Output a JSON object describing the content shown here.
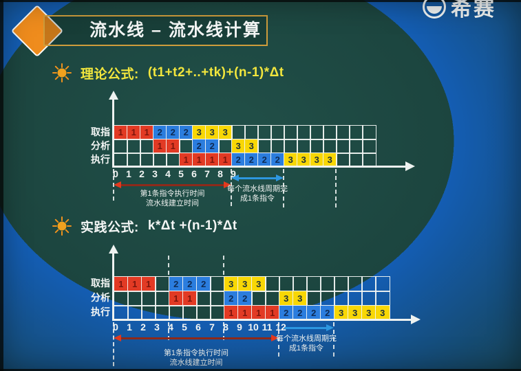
{
  "header": {
    "title": "流水线 – 流水线计算"
  },
  "logo": {
    "text": "希赛"
  },
  "palette": {
    "background": "#1c443e",
    "title_border": "#cf9d3c",
    "diamond": "#ef8c1d",
    "grid_line": "#edf1ef",
    "cell": {
      "r": "#e23a24",
      "b": "#2b7dde",
      "y": "#f8d705"
    },
    "digit": {
      "r": "#7a150c",
      "b": "#0e2b55",
      "y": "#1d3038"
    },
    "red_arrow_shaft": "#8e2a1a",
    "red_arrow_head": "#e23a1f",
    "blue_arrow": "#2d97e0"
  },
  "charts": [
    {
      "formula_label": "理论公式:",
      "formula": "(t1+t2+..+tk)+(n-1)*Δt",
      "formula_color": "#f2e63d",
      "row_labels": [
        "取指",
        "分析",
        "执行"
      ],
      "cols": 20,
      "rows": [
        [
          "1r",
          "1r",
          "1r",
          "2b",
          "2b",
          "2b",
          "3y",
          "3y",
          "3y",
          "",
          "",
          "",
          "",
          "",
          "",
          "",
          "",
          "",
          "",
          ""
        ],
        [
          "",
          "",
          "",
          "1r",
          "1r",
          "",
          "2b",
          "2b",
          "",
          "3y",
          "3y",
          "",
          "",
          "",
          "",
          "",
          "",
          "",
          "",
          ""
        ],
        [
          "",
          "",
          "",
          "",
          "",
          "1r",
          "1r",
          "1r",
          "1r",
          "2b",
          "2b",
          "2b",
          "2b",
          "3y",
          "3y",
          "3y",
          "3y",
          "",
          "",
          ""
        ]
      ],
      "ticks": [
        "0",
        "1",
        "2",
        "3",
        "4",
        "5",
        "6",
        "7",
        "8",
        "9"
      ],
      "red_arrow": {
        "from_col": 0,
        "to_col": 9,
        "double": true,
        "line1": "第1条指令执行时间",
        "line2": "流水线建立时间"
      },
      "blue_arrow": {
        "from_col": 9,
        "to_col": 13,
        "double": true,
        "line1": "每个流水线周期完",
        "line2": "成1条指令"
      },
      "dashed_above": [],
      "dashed_below": [
        {
          "col": 0,
          "len": 46
        },
        {
          "col": 9,
          "len": 54
        },
        {
          "col": 13,
          "len": 56
        },
        {
          "col": 17,
          "len": 56
        }
      ]
    },
    {
      "formula_label": "实践公式:",
      "formula": "k*Δt +(n-1)*Δt",
      "formula_color": "#f4f6f5",
      "row_labels": [
        "取指",
        "分析",
        "执行"
      ],
      "cols": 20,
      "rows": [
        [
          "1r",
          "1r",
          "1r",
          "",
          "2b",
          "2b",
          "2b",
          "",
          "3y",
          "3y",
          "3y",
          "",
          "",
          "",
          "",
          "",
          "",
          "",
          "",
          ""
        ],
        [
          "",
          "",
          "",
          "",
          "1r",
          "1r",
          "",
          "",
          "2b",
          "2b",
          "",
          "",
          "3y",
          "3y",
          "",
          "",
          "",
          "",
          "",
          ""
        ],
        [
          "",
          "",
          "",
          "",
          "",
          "",
          "",
          "",
          "1r",
          "1r",
          "1r",
          "1r",
          "2b",
          "2b",
          "2b",
          "2b",
          "3y",
          "3y",
          "3y",
          "3y"
        ]
      ],
      "ticks": [
        "0",
        "1",
        "2",
        "3",
        "4",
        "5",
        "6",
        "7",
        "8",
        "9",
        "10",
        "11",
        "12"
      ],
      "red_arrow": {
        "from_col": 0,
        "to_col": 12,
        "double": true,
        "line1": "第1条指令执行时间",
        "line2": "流水线建立时间"
      },
      "blue_arrow": {
        "from_col": 12,
        "to_col": 16,
        "double": false,
        "line1": "每个流水线周期完",
        "line2": "成1条指令"
      },
      "dashed_above": [
        {
          "col": 4,
          "len": 28
        },
        {
          "col": 8,
          "len": 28
        }
      ],
      "dashed_below": [
        {
          "col": 0,
          "len": 64
        },
        {
          "col": 4,
          "len": 26
        },
        {
          "col": 8,
          "len": 26
        },
        {
          "col": 12,
          "len": 50
        },
        {
          "col": 16,
          "len": 50
        }
      ]
    }
  ]
}
